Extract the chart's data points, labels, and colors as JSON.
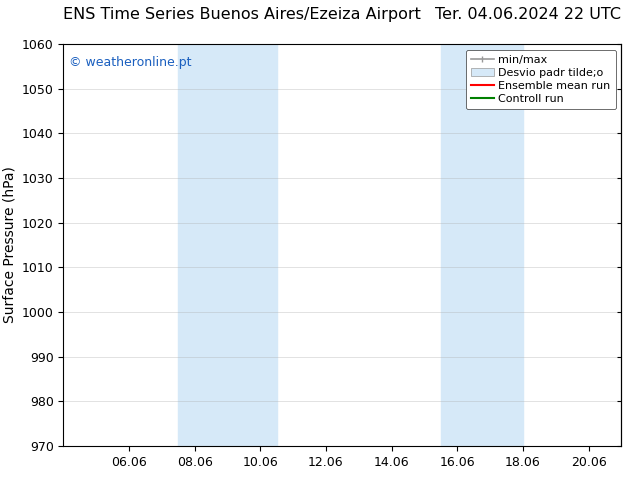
{
  "title_left": "ENS Time Series Buenos Aires/Ezeiza Airport",
  "title_right": "Ter. 04.06.2024 22 UTC",
  "ylabel": "Surface Pressure (hPa)",
  "ylim": [
    970,
    1060
  ],
  "yticks": [
    970,
    980,
    990,
    1000,
    1010,
    1020,
    1030,
    1040,
    1050,
    1060
  ],
  "xtick_labels": [
    "06.06",
    "08.06",
    "10.06",
    "12.06",
    "14.06",
    "16.06",
    "18.06",
    "20.06"
  ],
  "xtick_positions": [
    2,
    4,
    6,
    8,
    10,
    12,
    14,
    16
  ],
  "xlim": [
    0,
    17
  ],
  "shaded_bands": [
    {
      "x_start": 3.5,
      "x_end": 6.5
    },
    {
      "x_start": 11.5,
      "x_end": 14.0
    }
  ],
  "watermark": "© weatheronline.pt",
  "watermark_color": "#1a5fbf",
  "legend_entries": [
    "min/max",
    "Desvio padr tilde;o",
    "Ensemble mean run",
    "Controll run"
  ],
  "legend_colors": [
    "#aaaaaa",
    "#cce0f5",
    "#ff0000",
    "#008000"
  ],
  "background_color": "#ffffff",
  "plot_bg_color": "#ffffff",
  "title_fontsize": 11.5,
  "axis_label_fontsize": 10,
  "tick_fontsize": 9,
  "watermark_fontsize": 9,
  "grid_color": "#aaaaaa",
  "shaded_color": "#d6e9f8",
  "total_x_days": 17
}
